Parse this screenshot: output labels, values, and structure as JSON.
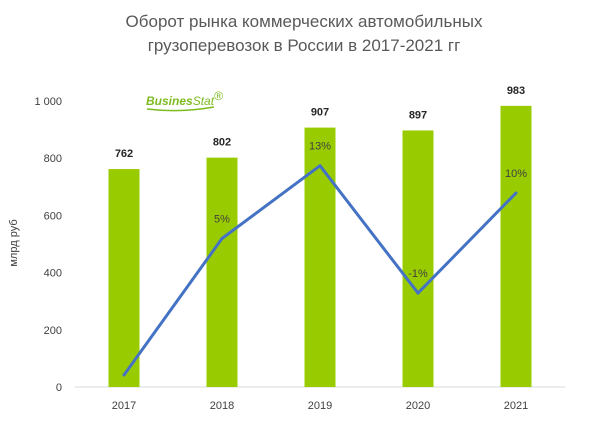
{
  "chart_data": {
    "type": "bar",
    "title_lines": [
      "Оборот рынка коммерческих автомобильных",
      "грузоперевозок в России в 2017-2021 гг"
    ],
    "ylabel": "млрд руб",
    "xlabel": "",
    "categories": [
      "2017",
      "2018",
      "2019",
      "2020",
      "2021"
    ],
    "values": [
      762,
      802,
      907,
      897,
      983
    ],
    "value_labels": [
      "762",
      "802",
      "907",
      "897",
      "983"
    ],
    "ylim": [
      0,
      1000
    ],
    "yticks": [
      0,
      200,
      400,
      600,
      800,
      1000
    ],
    "ytick_labels": [
      "0",
      "200",
      "400",
      "600",
      "800",
      "1 000"
    ],
    "grid": false,
    "bar_color": "#99cc00",
    "growth_line": {
      "type": "line",
      "color": "#4472c4",
      "values": [
        null,
        5,
        13,
        -1,
        10
      ],
      "labels": [
        "",
        "5%",
        "13%",
        "-1%",
        "10%"
      ]
    }
  },
  "logo": {
    "part1": "Busines",
    "part2": "Stat",
    "mark": "®",
    "color": "#7dbb1f"
  }
}
